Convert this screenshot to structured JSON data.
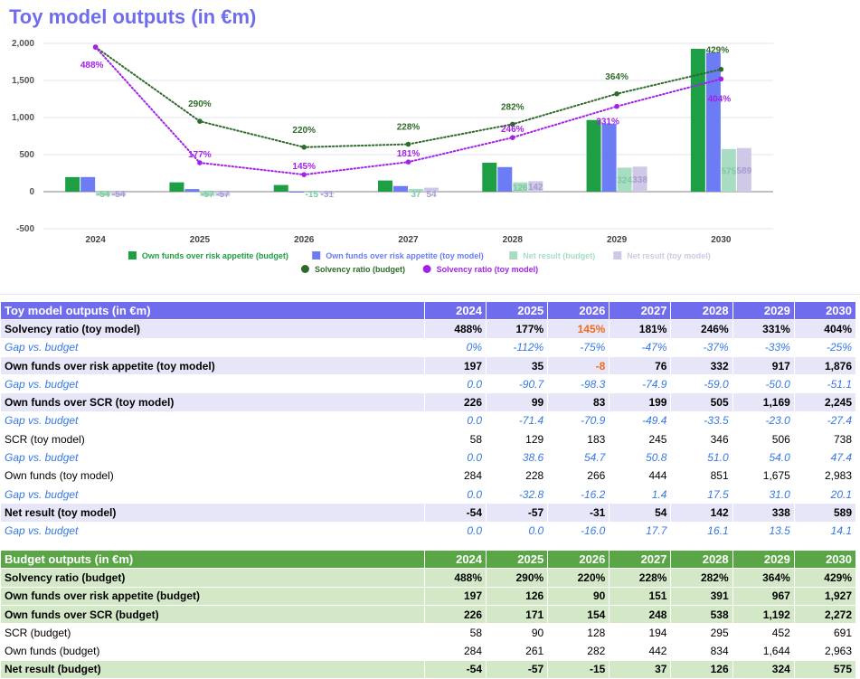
{
  "chart_data": {
    "type": "bar",
    "title": "Toy model outputs (in €m)",
    "categories": [
      "2024",
      "2025",
      "2026",
      "2027",
      "2028",
      "2029",
      "2030"
    ],
    "yticks": [
      "-500",
      "0",
      "500",
      "1,000",
      "1,500",
      "2,000"
    ],
    "ylim": [
      -500,
      2000
    ],
    "grid": true,
    "legend_position": "bottom",
    "series": [
      {
        "name": "Own funds over risk appetite (budget)",
        "kind": "bar",
        "color": "#1e9e45",
        "values": [
          197,
          126,
          90,
          151,
          391,
          967,
          1927
        ],
        "labels": [
          null,
          null,
          null,
          null,
          null,
          null,
          null
        ]
      },
      {
        "name": "Own funds over risk appetite (toy model)",
        "kind": "bar",
        "color": "#6b7cf5",
        "values": [
          197,
          35,
          -8,
          76,
          332,
          917,
          1876
        ],
        "labels": [
          null,
          null,
          null,
          null,
          null,
          null,
          null
        ]
      },
      {
        "name": "Net result (budget)",
        "kind": "bar",
        "color": "#a9ddc3",
        "values": [
          -54,
          -57,
          -15,
          37,
          126,
          324,
          575
        ],
        "labels": [
          "-54",
          "-57",
          "-15",
          "37",
          "126",
          "324",
          "575"
        ]
      },
      {
        "name": "Net result (toy model)",
        "kind": "bar",
        "color": "#cfc8e6",
        "values": [
          -54,
          -57,
          -31,
          54,
          142,
          338,
          589
        ],
        "labels": [
          "-54",
          "-57",
          "-31",
          "54",
          "142",
          "338",
          "589"
        ]
      },
      {
        "name": "Solvency ratio (budget)",
        "kind": "line",
        "color": "#2e6b2a",
        "values": [
          1950,
          950,
          600,
          640,
          910,
          1320,
          1650
        ],
        "labels": [
          null,
          "290%",
          "220%",
          "228%",
          "282%",
          "364%",
          "429%"
        ]
      },
      {
        "name": "Solvency ratio (toy model)",
        "kind": "line",
        "color": "#a322e8",
        "values": [
          1950,
          390,
          230,
          400,
          730,
          1150,
          1520
        ],
        "labels": [
          "488%",
          "177%",
          "145%",
          "181%",
          "246%",
          "331%",
          "404%"
        ]
      }
    ]
  },
  "toy_table": {
    "header": "Toy model outputs (in €m)",
    "years": [
      "2024",
      "2025",
      "2026",
      "2027",
      "2028",
      "2029",
      "2030"
    ],
    "rows": [
      {
        "style": "bold-blue",
        "label": "Solvency ratio (toy model)",
        "values": [
          "488%",
          "177%",
          "145%",
          "181%",
          "246%",
          "331%",
          "404%"
        ]
      },
      {
        "style": "gap",
        "label": "Gap vs. budget",
        "values": [
          "0%",
          "-112%",
          "-75%",
          "-47%",
          "-37%",
          "-33%",
          "-25%"
        ]
      },
      {
        "style": "bold-blue",
        "label": "Own funds over risk appetite (toy model)",
        "values": [
          "197",
          "35",
          "-8",
          "76",
          "332",
          "917",
          "1,876"
        ]
      },
      {
        "style": "gap",
        "label": "Gap vs. budget",
        "values": [
          "0.0",
          "-90.7",
          "-98.3",
          "-74.9",
          "-59.0",
          "-50.0",
          "-51.1"
        ]
      },
      {
        "style": "bold-blue",
        "label": "Own funds over SCR (toy model)",
        "values": [
          "226",
          "99",
          "83",
          "199",
          "505",
          "1,169",
          "2,245"
        ]
      },
      {
        "style": "gap",
        "label": "Gap vs. budget",
        "values": [
          "0.0",
          "-71.4",
          "-70.9",
          "-49.4",
          "-33.5",
          "-23.0",
          "-27.4"
        ]
      },
      {
        "style": "plain-blue",
        "label": "SCR (toy model)",
        "values": [
          "58",
          "129",
          "183",
          "245",
          "346",
          "506",
          "738"
        ]
      },
      {
        "style": "gap",
        "label": "Gap vs. budget",
        "values": [
          "0.0",
          "38.6",
          "54.7",
          "50.8",
          "51.0",
          "54.0",
          "47.4"
        ]
      },
      {
        "style": "plain-blue",
        "label": "Own funds (toy model)",
        "values": [
          "284",
          "228",
          "266",
          "444",
          "851",
          "1,675",
          "2,983"
        ]
      },
      {
        "style": "gap",
        "label": "Gap vs. budget",
        "values": [
          "0.0",
          "-32.8",
          "-16.2",
          "1.4",
          "17.5",
          "31.0",
          "20.1"
        ]
      },
      {
        "style": "bold-blue",
        "label": "Net result (toy model)",
        "values": [
          "-54",
          "-57",
          "-31",
          "54",
          "142",
          "338",
          "589"
        ]
      },
      {
        "style": "gap",
        "label": "Gap vs. budget",
        "values": [
          "0.0",
          "0.0",
          "-16.0",
          "17.7",
          "16.1",
          "13.5",
          "14.1"
        ]
      }
    ],
    "highlights": [
      {
        "row": 0,
        "col": 2,
        "color": "#f26a1b"
      },
      {
        "row": 2,
        "col": 2,
        "color": "#f26a1b"
      }
    ]
  },
  "budget_table": {
    "header": "Budget outputs (in €m)",
    "years": [
      "2024",
      "2025",
      "2026",
      "2027",
      "2028",
      "2029",
      "2030"
    ],
    "rows": [
      {
        "style": "bold-green",
        "label": "Solvency ratio (budget)",
        "values": [
          "488%",
          "290%",
          "220%",
          "228%",
          "282%",
          "364%",
          "429%"
        ]
      },
      {
        "style": "bold-green",
        "label": "Own funds over risk appetite (budget)",
        "values": [
          "197",
          "126",
          "90",
          "151",
          "391",
          "967",
          "1,927"
        ]
      },
      {
        "style": "bold-green",
        "label": "Own funds over SCR (budget)",
        "values": [
          "226",
          "171",
          "154",
          "248",
          "538",
          "1,192",
          "2,272"
        ]
      },
      {
        "style": "plain-green",
        "label": "SCR (budget)",
        "values": [
          "58",
          "90",
          "128",
          "194",
          "295",
          "452",
          "691"
        ]
      },
      {
        "style": "plain-green",
        "label": "Own funds (budget)",
        "values": [
          "284",
          "261",
          "282",
          "442",
          "834",
          "1,644",
          "2,963"
        ]
      },
      {
        "style": "bold-green",
        "label": "Net result (budget)",
        "values": [
          "-54",
          "-57",
          "-15",
          "37",
          "126",
          "324",
          "575"
        ]
      }
    ]
  }
}
